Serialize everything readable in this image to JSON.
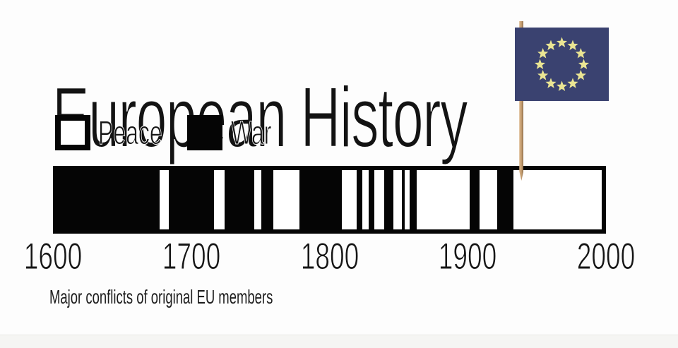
{
  "title": "European History",
  "legend": {
    "peace_label": "Peace",
    "war_label": "War"
  },
  "caption": "Major conflicts of original EU members",
  "colors": {
    "war": "#050505",
    "peace": "#ffffff",
    "flag_blue": "#3a4270",
    "flag_star_yellow": "#eae593",
    "pole_tan": "#c49d70",
    "background": "#fdfdfd"
  },
  "chart_data": {
    "type": "timeline-bar",
    "title": "European History",
    "caption": "Major conflicts of original EU members",
    "legend": [
      {
        "label": "Peace",
        "color": "#ffffff"
      },
      {
        "label": "War",
        "color": "#050505"
      }
    ],
    "x_axis": {
      "range": [
        1600,
        2000
      ],
      "ticks": [
        "1600",
        "1700",
        "1800",
        "1900",
        "2000"
      ]
    },
    "annotation": {
      "name": "eu-flag",
      "year": 1941,
      "star_count": 12
    },
    "segments": [
      {
        "state": "war",
        "start": 1600,
        "end": 1675
      },
      {
        "state": "peace",
        "start": 1675,
        "end": 1682
      },
      {
        "state": "war",
        "start": 1682,
        "end": 1715
      },
      {
        "state": "peace",
        "start": 1715,
        "end": 1723
      },
      {
        "state": "war",
        "start": 1723,
        "end": 1745
      },
      {
        "state": "peace",
        "start": 1745,
        "end": 1750
      },
      {
        "state": "war",
        "start": 1750,
        "end": 1759
      },
      {
        "state": "peace",
        "start": 1759,
        "end": 1778
      },
      {
        "state": "war",
        "start": 1778,
        "end": 1809
      },
      {
        "state": "peace",
        "start": 1809,
        "end": 1820
      },
      {
        "state": "war",
        "start": 1820,
        "end": 1824
      },
      {
        "state": "peace",
        "start": 1824,
        "end": 1829
      },
      {
        "state": "war",
        "start": 1829,
        "end": 1833
      },
      {
        "state": "peace",
        "start": 1833,
        "end": 1840
      },
      {
        "state": "war",
        "start": 1840,
        "end": 1847
      },
      {
        "state": "peace",
        "start": 1847,
        "end": 1853
      },
      {
        "state": "war",
        "start": 1853,
        "end": 1855
      },
      {
        "state": "peace",
        "start": 1855,
        "end": 1859
      },
      {
        "state": "war",
        "start": 1859,
        "end": 1864
      },
      {
        "state": "peace",
        "start": 1864,
        "end": 1903
      },
      {
        "state": "war",
        "start": 1903,
        "end": 1910
      },
      {
        "state": "peace",
        "start": 1910,
        "end": 1923
      },
      {
        "state": "war",
        "start": 1923,
        "end": 1935
      },
      {
        "state": "peace",
        "start": 1935,
        "end": 2000
      }
    ]
  }
}
